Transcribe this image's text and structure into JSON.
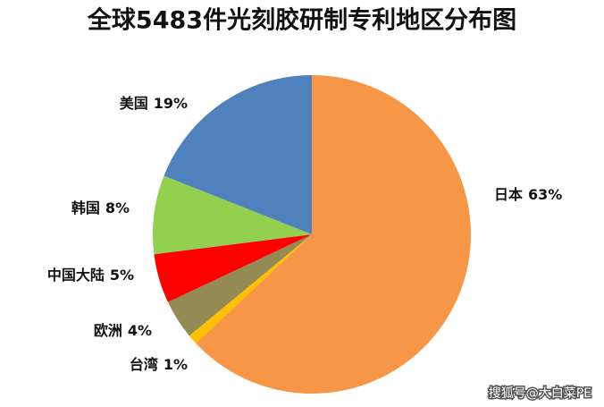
{
  "chart_data": {
    "type": "pie",
    "title": "全球5483件光刻胶研制专利地区分布图",
    "categories": [
      "日本",
      "台湾",
      "欧洲",
      "中国大陆",
      "韩国",
      "美国"
    ],
    "values": [
      63,
      1,
      4,
      5,
      8,
      19
    ],
    "value_labels": [
      "63%",
      "1%",
      "4%",
      "5%",
      "8%",
      "19%"
    ],
    "colors": [
      "#F79646",
      "#FFC000",
      "#948A54",
      "#FF0000",
      "#92D050",
      "#4F81BD"
    ],
    "watermark": "搜狐号@大白菜PE"
  }
}
